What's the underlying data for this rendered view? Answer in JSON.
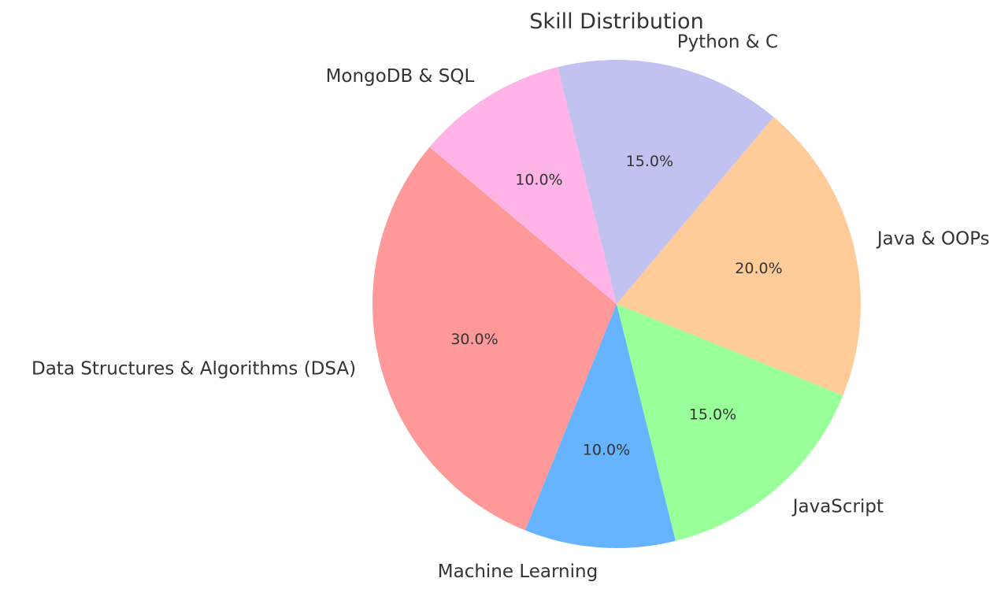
{
  "chart_data": {
    "type": "pie",
    "title": "Skill Distribution",
    "slices": [
      {
        "label": "Data Structures & Algorithms (DSA)",
        "value": 30.0,
        "pct_label": "30.0%",
        "color": "#ff9999"
      },
      {
        "label": "Machine Learning",
        "value": 10.0,
        "pct_label": "10.0%",
        "color": "#66b3ff"
      },
      {
        "label": "JavaScript",
        "value": 15.0,
        "pct_label": "15.0%",
        "color": "#99ff99"
      },
      {
        "label": "Java & OOPs",
        "value": 20.0,
        "pct_label": "20.0%",
        "color": "#ffcc99"
      },
      {
        "label": "Python & C",
        "value": 15.0,
        "pct_label": "15.0%",
        "color": "#c2c2f0"
      },
      {
        "label": "MongoDB & SQL",
        "value": 10.0,
        "pct_label": "10.0%",
        "color": "#ffb3e6"
      }
    ],
    "start_angle_deg": 140,
    "direction": "counterclockwise"
  }
}
